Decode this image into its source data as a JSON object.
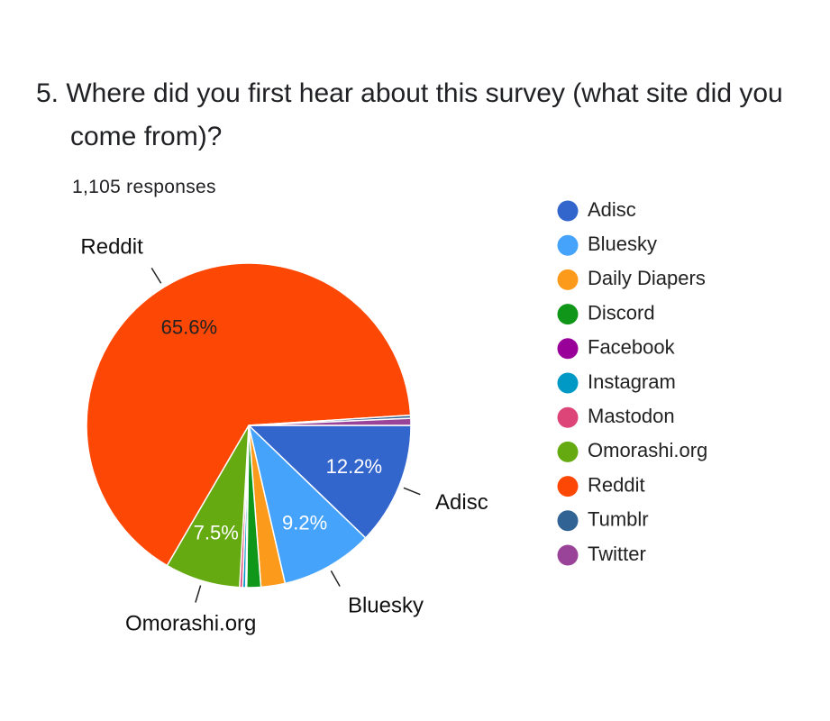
{
  "chart_data": {
    "type": "pie",
    "title": "5. Where did you first hear about this survey (what site did you come from)?",
    "subtitle": "1,105 responses",
    "categories": [
      "Adisc",
      "Bluesky",
      "Daily Diapers",
      "Discord",
      "Facebook",
      "Instagram",
      "Mastodon",
      "Omorashi.org",
      "Reddit",
      "Tumblr",
      "Twitter"
    ],
    "values": [
      12.2,
      9.2,
      2.4,
      1.4,
      0.1,
      0.3,
      0.3,
      7.5,
      65.6,
      0.3,
      0.7
    ],
    "value_labels": [
      "12.2%",
      "9.2%",
      null,
      null,
      null,
      null,
      null,
      "7.5%",
      "65.6%",
      null,
      null
    ],
    "colors": [
      "#3366cc",
      "#45a3fb",
      "#fb9a1b",
      "#109618",
      "#990099",
      "#0099c6",
      "#dd4477",
      "#66aa11",
      "#fc4705",
      "#316395",
      "#994499"
    ],
    "legend": "right"
  }
}
